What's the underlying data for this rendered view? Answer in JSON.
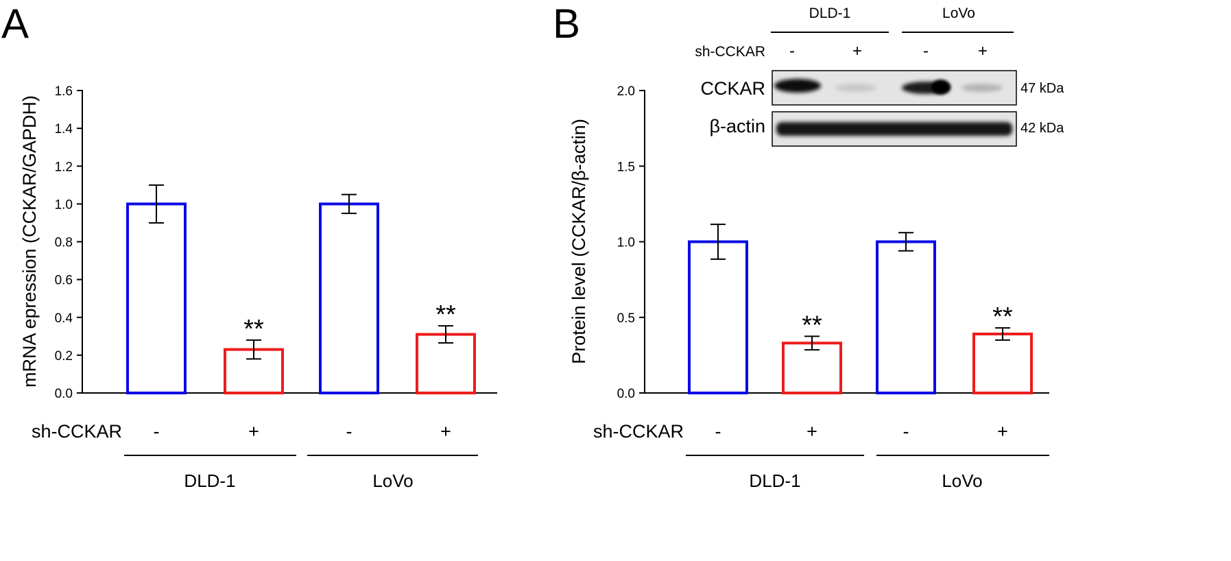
{
  "colors": {
    "control": "#0a0ae6",
    "knockdown": "#ee1c1c",
    "axis": "#000000",
    "blot_background": "#e4e4e4",
    "blot_band": "#111111"
  },
  "chart_data": [
    {
      "panel": "A",
      "type": "bar",
      "ylabel": "mRNA epression (CCKAR/GAPDH)",
      "ylim": [
        0,
        1.6
      ],
      "yticks": [
        "0.0",
        "0.2",
        "0.4",
        "0.6",
        "0.8",
        "1.0",
        "1.2",
        "1.4",
        "1.6"
      ],
      "treatment_label": "sh-CCKAR",
      "bars": [
        {
          "group": "DLD-1",
          "treatment": "-",
          "value": 1.0,
          "error": 0.1,
          "significance": "",
          "series": "control"
        },
        {
          "group": "DLD-1",
          "treatment": "+",
          "value": 0.23,
          "error": 0.05,
          "significance": "**",
          "series": "knockdown"
        },
        {
          "group": "LoVo",
          "treatment": "-",
          "value": 1.0,
          "error": 0.05,
          "significance": "",
          "series": "control"
        },
        {
          "group": "LoVo",
          "treatment": "+",
          "value": 0.31,
          "error": 0.045,
          "significance": "**",
          "series": "knockdown"
        }
      ],
      "groups": [
        "DLD-1",
        "LoVo"
      ]
    },
    {
      "panel": "B",
      "type": "bar",
      "ylabel": "Protein level (CCKAR/β-actin)",
      "ylim": [
        0,
        2.0
      ],
      "yticks": [
        "0.0",
        "0.5",
        "1.0",
        "1.5",
        "2.0"
      ],
      "treatment_label": "sh-CCKAR",
      "bars": [
        {
          "group": "DLD-1",
          "treatment": "-",
          "value": 1.0,
          "error": 0.115,
          "significance": "",
          "series": "control"
        },
        {
          "group": "DLD-1",
          "treatment": "+",
          "value": 0.33,
          "error": 0.045,
          "significance": "**",
          "series": "knockdown"
        },
        {
          "group": "LoVo",
          "treatment": "-",
          "value": 1.0,
          "error": 0.06,
          "significance": "",
          "series": "control"
        },
        {
          "group": "LoVo",
          "treatment": "+",
          "value": 0.39,
          "error": 0.04,
          "significance": "**",
          "series": "knockdown"
        }
      ],
      "groups": [
        "DLD-1",
        "LoVo"
      ]
    }
  ],
  "blot": {
    "cell_lines": [
      "DLD-1",
      "LoVo"
    ],
    "treatment_label": "sh-CCKAR",
    "lanes": [
      "-",
      "+",
      "-",
      "+"
    ],
    "rows": [
      {
        "protein": "CCKAR",
        "size": "47 kDa"
      },
      {
        "protein": "β-actin",
        "size": "42 kDa"
      }
    ]
  }
}
